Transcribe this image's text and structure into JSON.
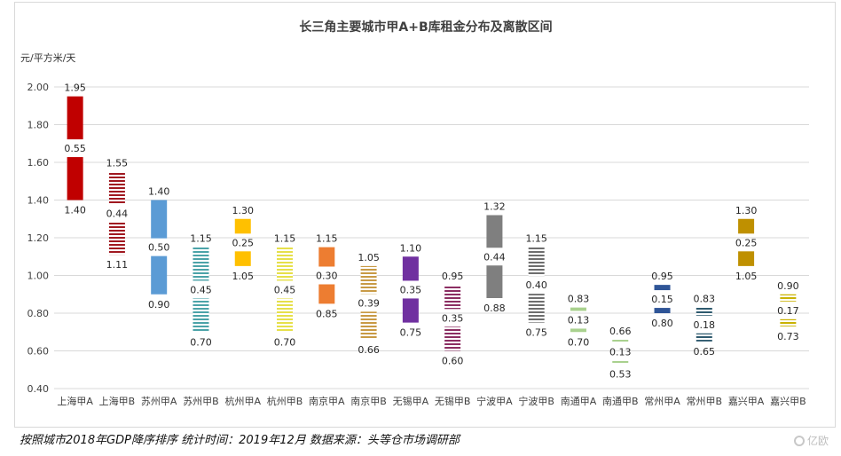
{
  "chart_data": {
    "type": "bar",
    "title": "长三角主要城市甲A+B库租金分布及离散区间",
    "ylabel": "元/平方米/天",
    "ylim": [
      0.4,
      2.0
    ],
    "yticks": [
      "0.40",
      "0.60",
      "0.80",
      "1.00",
      "1.20",
      "1.40",
      "1.60",
      "1.80",
      "2.00"
    ],
    "grid": true,
    "categories": [
      "上海甲A",
      "上海甲B",
      "苏州甲A",
      "苏州甲B",
      "杭州甲A",
      "杭州甲B",
      "南京甲A",
      "南京甲B",
      "无锡甲A",
      "无锡甲B",
      "宁波甲A",
      "宁波甲B",
      "南通甲A",
      "南通甲B",
      "常州甲A",
      "常州甲B",
      "嘉兴甲A",
      "嘉兴甲B"
    ],
    "series": [
      {
        "max": 1.95,
        "range": 0.55,
        "min": 1.4,
        "color": "#C00000",
        "pattern": "solid"
      },
      {
        "max": 1.55,
        "range": 0.44,
        "min": 1.11,
        "color": "#A01820",
        "pattern": "stripes"
      },
      {
        "max": 1.4,
        "range": 0.5,
        "min": 0.9,
        "color": "#5B9BD5",
        "pattern": "solid"
      },
      {
        "max": 1.15,
        "range": 0.45,
        "min": 0.7,
        "color": "#4BA3A8",
        "pattern": "stripes"
      },
      {
        "max": 1.3,
        "range": 0.25,
        "min": 1.05,
        "color": "#FFC000",
        "pattern": "solid"
      },
      {
        "max": 1.15,
        "range": 0.45,
        "min": 0.7,
        "color": "#E6E04A",
        "pattern": "stripes"
      },
      {
        "max": 1.15,
        "range": 0.3,
        "min": 0.85,
        "color": "#ED7D31",
        "pattern": "solid"
      },
      {
        "max": 1.05,
        "range": 0.39,
        "min": 0.66,
        "color": "#C89A45",
        "pattern": "stripes"
      },
      {
        "max": 1.1,
        "range": 0.35,
        "min": 0.75,
        "color": "#7030A0",
        "pattern": "solid"
      },
      {
        "max": 0.95,
        "range": 0.35,
        "min": 0.6,
        "color": "#8B2E62",
        "pattern": "stripes"
      },
      {
        "max": 1.32,
        "range": 0.44,
        "min": 0.88,
        "color": "#7F7F7F",
        "pattern": "solid"
      },
      {
        "max": 1.15,
        "range": 0.4,
        "min": 0.75,
        "color": "#6E6E6E",
        "pattern": "stripes"
      },
      {
        "max": 0.83,
        "range": 0.13,
        "min": 0.7,
        "color": "#A9D18E",
        "pattern": "solid"
      },
      {
        "max": 0.66,
        "range": 0.13,
        "min": 0.53,
        "color": "#A9D18E",
        "pattern": "stripes"
      },
      {
        "max": 0.95,
        "range": 0.15,
        "min": 0.8,
        "color": "#2F5597",
        "pattern": "solid"
      },
      {
        "max": 0.83,
        "range": 0.18,
        "min": 0.65,
        "color": "#2E5A6E",
        "pattern": "stripes"
      },
      {
        "max": 1.3,
        "range": 0.25,
        "min": 1.05,
        "color": "#BF9000",
        "pattern": "solid"
      },
      {
        "max": 0.9,
        "range": 0.17,
        "min": 0.73,
        "color": "#C9B200",
        "pattern": "stripes"
      }
    ]
  },
  "footnote": "按照城市2018年GDP降序排序  统计时间：2019年12月 数据来源：头等仓市场调研部",
  "watermark": "亿欧"
}
